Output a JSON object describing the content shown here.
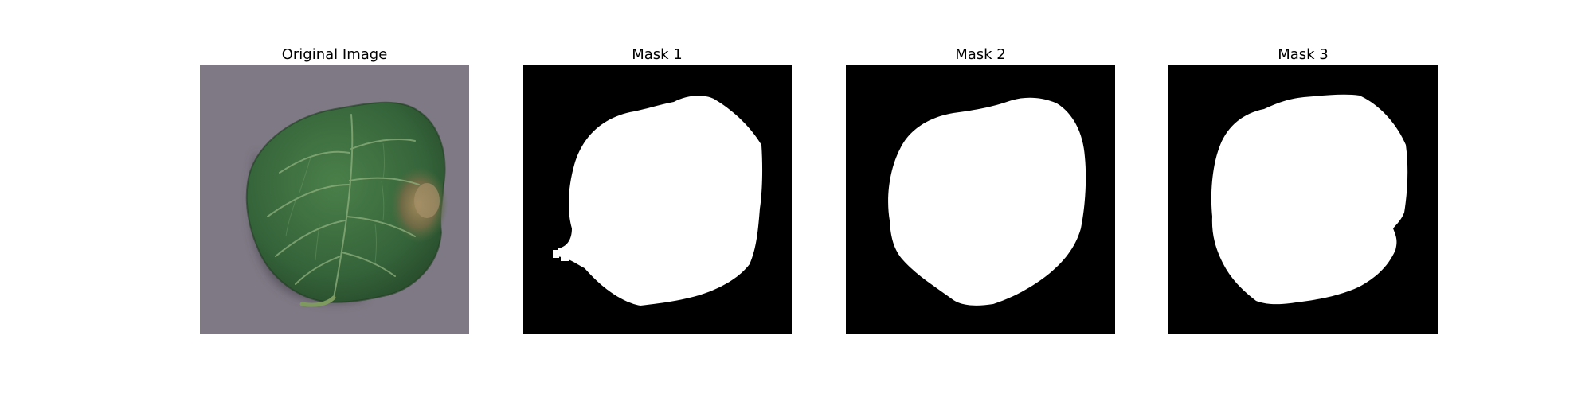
{
  "figure": {
    "panels": [
      {
        "title": "Original Image",
        "kind": "photo"
      },
      {
        "title": "Mask 1",
        "kind": "mask"
      },
      {
        "title": "Mask 2",
        "kind": "mask"
      },
      {
        "title": "Mask 3",
        "kind": "mask"
      }
    ]
  },
  "colors": {
    "photo_background": "#7b7682",
    "leaf_dark": "#2e5a30",
    "leaf_mid": "#3f7442",
    "leaf_vein": "#8fb07e",
    "leaf_blight": "#8a7550",
    "mask_background": "#000000",
    "mask_foreground": "#ffffff"
  }
}
